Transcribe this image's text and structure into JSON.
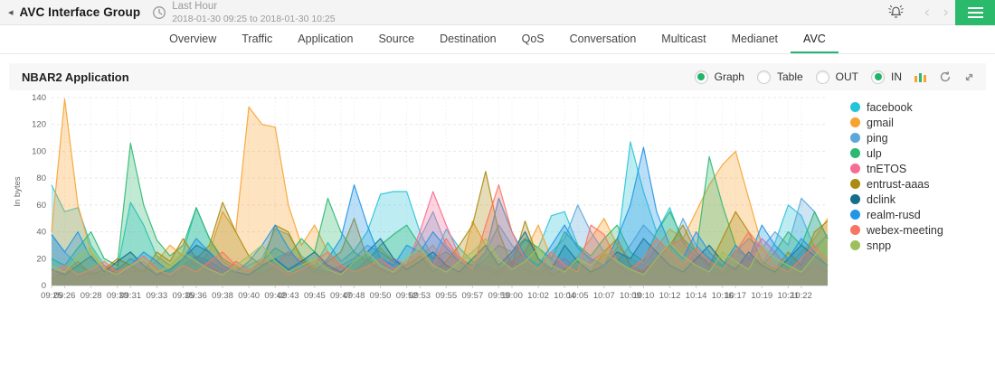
{
  "header": {
    "title": "AVC Interface Group",
    "back_glyph": "◂",
    "time_range_label": "Last Hour",
    "time_range_value": "2018-01-30 09:25 to 2018-01-30 10:25",
    "prev_glyph": "‹",
    "next_glyph": "›"
  },
  "nav": {
    "tabs": [
      {
        "label": "Overview",
        "active": false
      },
      {
        "label": "Traffic",
        "active": false
      },
      {
        "label": "Application",
        "active": false
      },
      {
        "label": "Source",
        "active": false
      },
      {
        "label": "Destination",
        "active": false
      },
      {
        "label": "QoS",
        "active": false
      },
      {
        "label": "Conversation",
        "active": false
      },
      {
        "label": "Multicast",
        "active": false
      },
      {
        "label": "Medianet",
        "active": false
      },
      {
        "label": "AVC",
        "active": true
      }
    ]
  },
  "panel": {
    "title": "NBAR2 Application",
    "view_options": [
      {
        "label": "Graph",
        "selected": true
      },
      {
        "label": "Table",
        "selected": false
      }
    ],
    "direction_options": [
      {
        "label": "OUT",
        "selected": false
      },
      {
        "label": "IN",
        "selected": true
      }
    ]
  },
  "colors": {
    "accent_green": "#21b56b",
    "menu_green": "#2bb96b",
    "tab_underline": "#21b573",
    "grid_line": "#e8e8e8",
    "axis_text": "#666666"
  },
  "chart_data": {
    "type": "area",
    "title": "NBAR2 Application",
    "xlabel": "",
    "ylabel": "In bytes",
    "ylim": [
      0,
      140
    ],
    "yticks": [
      0,
      20,
      40,
      60,
      80,
      100,
      120,
      140
    ],
    "grid": true,
    "legend_position": "right",
    "x_count": 60,
    "x_tick_indices": [
      0,
      1,
      3,
      5,
      6,
      8,
      10,
      11,
      13,
      15,
      17,
      18,
      20,
      22,
      23,
      25,
      27,
      28,
      30,
      32,
      34,
      35,
      37,
      39,
      40,
      42,
      44,
      45,
      47,
      49,
      51,
      52,
      54,
      56,
      57
    ],
    "x_tick_labels": [
      "09:25",
      "09:26",
      "09:28",
      "09:30",
      "09:31",
      "09:33",
      "09:35",
      "09:36",
      "09:38",
      "09:40",
      "09:42",
      "09:43",
      "09:45",
      "09:47",
      "09:48",
      "09:50",
      "09:52",
      "09:53",
      "09:55",
      "09:57",
      "09:59",
      "10:00",
      "10:02",
      "10:04",
      "10:05",
      "10:07",
      "10:09",
      "10:10",
      "10:12",
      "10:14",
      "10:16",
      "10:17",
      "10:19",
      "10:21",
      "10:22"
    ],
    "series": [
      {
        "name": "facebook",
        "color": "#26c4d8",
        "values": [
          75,
          55,
          58,
          30,
          15,
          12,
          62,
          45,
          22,
          15,
          25,
          58,
          35,
          18,
          12,
          15,
          20,
          42,
          38,
          22,
          14,
          32,
          18,
          26,
          40,
          68,
          70,
          70,
          40,
          20,
          42,
          28,
          18,
          12,
          8,
          22,
          34,
          28,
          52,
          55,
          30,
          18,
          14,
          28,
          107,
          70,
          40,
          58,
          32,
          22,
          18,
          14,
          26,
          22,
          16,
          32,
          60,
          52,
          28,
          38
        ]
      },
      {
        "name": "gmail",
        "color": "#f7a32f",
        "values": [
          40,
          139,
          60,
          25,
          12,
          8,
          10,
          12,
          18,
          30,
          22,
          15,
          25,
          55,
          40,
          133,
          120,
          118,
          60,
          30,
          45,
          25,
          15,
          10,
          20,
          28,
          18,
          12,
          22,
          30,
          15,
          10,
          48,
          30,
          12,
          18,
          25,
          45,
          20,
          12,
          22,
          35,
          50,
          30,
          20,
          15,
          28,
          42,
          35,
          55,
          75,
          90,
          100,
          65,
          30,
          20,
          15,
          25,
          35,
          50
        ]
      },
      {
        "name": "ping",
        "color": "#5aa7db",
        "values": [
          38,
          25,
          15,
          10,
          8,
          12,
          20,
          15,
          10,
          8,
          15,
          22,
          18,
          12,
          10,
          8,
          14,
          20,
          25,
          18,
          12,
          10,
          15,
          20,
          30,
          25,
          18,
          15,
          35,
          55,
          30,
          20,
          15,
          25,
          45,
          30,
          20,
          15,
          25,
          35,
          60,
          40,
          25,
          18,
          30,
          45,
          35,
          25,
          50,
          30,
          20,
          15,
          25,
          35,
          28,
          40,
          30,
          65,
          55,
          35
        ]
      },
      {
        "name": "ulp",
        "color": "#2eb872",
        "values": [
          20,
          15,
          28,
          40,
          20,
          15,
          106,
          60,
          34,
          22,
          30,
          58,
          35,
          20,
          14,
          10,
          18,
          28,
          22,
          35,
          25,
          65,
          40,
          25,
          18,
          30,
          38,
          45,
          30,
          20,
          25,
          18,
          12,
          20,
          30,
          25,
          35,
          28,
          20,
          40,
          30,
          22,
          35,
          45,
          25,
          18,
          40,
          55,
          35,
          25,
          96,
          60,
          30,
          20,
          15,
          25,
          40,
          30,
          55,
          35
        ]
      },
      {
        "name": "tnETOS",
        "color": "#f76c94",
        "values": [
          8,
          12,
          6,
          10,
          15,
          8,
          12,
          18,
          10,
          6,
          12,
          20,
          15,
          8,
          18,
          12,
          8,
          15,
          25,
          18,
          10,
          8,
          14,
          10,
          18,
          12,
          20,
          15,
          40,
          70,
          45,
          22,
          12,
          15,
          10,
          18,
          12,
          8,
          15,
          20,
          12,
          18,
          25,
          15,
          8,
          12,
          18,
          30,
          35,
          15,
          10,
          8,
          14,
          20,
          35,
          25,
          12,
          8,
          15,
          10
        ]
      },
      {
        "name": "entrust-aaas",
        "color": "#ab8b10",
        "values": [
          5,
          10,
          18,
          8,
          12,
          20,
          15,
          10,
          25,
          18,
          35,
          20,
          30,
          62,
          40,
          22,
          15,
          45,
          40,
          20,
          12,
          18,
          25,
          50,
          20,
          12,
          8,
          15,
          22,
          10,
          18,
          30,
          45,
          85,
          40,
          15,
          48,
          20,
          8,
          12,
          18,
          10,
          25,
          35,
          15,
          10,
          20,
          30,
          45,
          25,
          15,
          35,
          55,
          40,
          18,
          12,
          25,
          15,
          40,
          48
        ]
      },
      {
        "name": "dclink",
        "color": "#136f8a",
        "values": [
          12,
          8,
          15,
          22,
          10,
          18,
          25,
          15,
          8,
          12,
          20,
          30,
          25,
          15,
          10,
          8,
          15,
          20,
          12,
          18,
          25,
          15,
          10,
          18,
          25,
          35,
          20,
          12,
          18,
          25,
          15,
          10,
          20,
          30,
          15,
          25,
          40,
          20,
          12,
          30,
          18,
          10,
          15,
          25,
          20,
          35,
          25,
          15,
          10,
          20,
          30,
          18,
          12,
          25,
          15,
          10,
          20,
          30,
          22,
          15
        ]
      },
      {
        "name": "realm-rusd",
        "color": "#2196e8",
        "values": [
          38,
          25,
          40,
          20,
          12,
          8,
          15,
          25,
          18,
          10,
          20,
          35,
          25,
          15,
          10,
          18,
          30,
          45,
          28,
          15,
          10,
          20,
          35,
          75,
          45,
          20,
          15,
          30,
          25,
          40,
          28,
          18,
          12,
          25,
          65,
          40,
          22,
          15,
          30,
          45,
          28,
          20,
          15,
          35,
          60,
          103,
          55,
          30,
          20,
          40,
          25,
          15,
          30,
          20,
          45,
          30,
          20,
          35,
          25,
          15
        ]
      },
      {
        "name": "webex-meeting",
        "color": "#f97463",
        "values": [
          10,
          15,
          8,
          12,
          18,
          10,
          15,
          22,
          12,
          8,
          15,
          10,
          18,
          25,
          15,
          10,
          20,
          15,
          8,
          12,
          18,
          25,
          15,
          10,
          14,
          20,
          12,
          18,
          25,
          15,
          35,
          20,
          12,
          45,
          75,
          40,
          20,
          12,
          25,
          15,
          10,
          45,
          38,
          18,
          12,
          20,
          35,
          25,
          15,
          28,
          18,
          12,
          25,
          40,
          28,
          15,
          10,
          20,
          30,
          18
        ]
      },
      {
        "name": "snpp",
        "color": "#9dc05c",
        "values": [
          15,
          10,
          22,
          28,
          12,
          8,
          15,
          20,
          10,
          15,
          25,
          18,
          12,
          8,
          15,
          22,
          30,
          18,
          10,
          15,
          20,
          12,
          8,
          18,
          25,
          15,
          10,
          20,
          28,
          15,
          10,
          18,
          25,
          35,
          20,
          12,
          18,
          28,
          15,
          10,
          20,
          15,
          25,
          18,
          12,
          8,
          20,
          32,
          22,
          15,
          10,
          25,
          18,
          12,
          30,
          20,
          15,
          10,
          22,
          35
        ]
      }
    ]
  }
}
